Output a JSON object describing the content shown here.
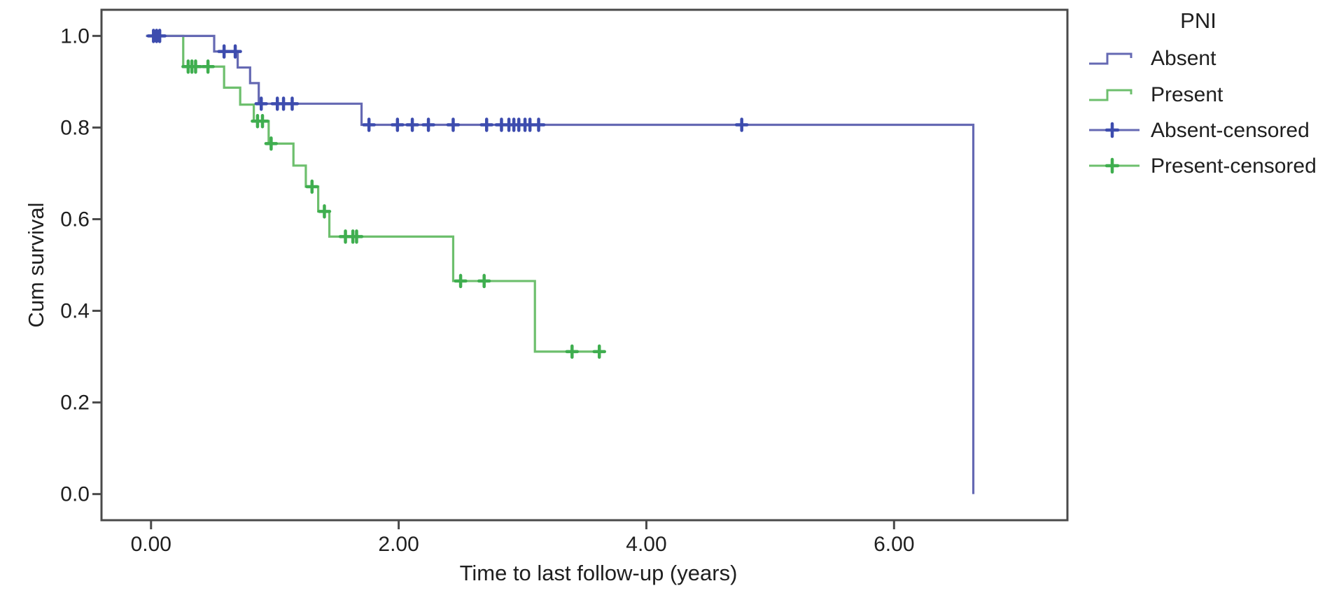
{
  "figure": {
    "background": "#ffffff",
    "axis_color": "#4a4a4a",
    "text_color": "#1f1f1f"
  },
  "chart_data": {
    "type": "line",
    "subtype": "kaplan_meier_step",
    "title": "",
    "xlabel": "Time to last follow-up (years)",
    "ylabel": "Cum survival",
    "xlim": [
      -0.4,
      7.4
    ],
    "ylim": [
      -0.057,
      1.057
    ],
    "grid": false,
    "legend_position": "right",
    "x_ticks": [
      {
        "value": 0,
        "label": "0.00"
      },
      {
        "value": 2,
        "label": "2.00"
      },
      {
        "value": 4,
        "label": "4.00"
      },
      {
        "value": 6,
        "label": "6.00"
      }
    ],
    "y_ticks": [
      {
        "value": 0.0,
        "label": "0.0"
      },
      {
        "value": 0.2,
        "label": "0.2"
      },
      {
        "value": 0.4,
        "label": "0.4"
      },
      {
        "value": 0.6,
        "label": "0.6"
      },
      {
        "value": 0.8,
        "label": "0.8"
      },
      {
        "value": 1.0,
        "label": "1.0"
      }
    ],
    "legend": {
      "title": "PNI",
      "entries": [
        {
          "label": "Absent",
          "type": "line",
          "color": "#6569b3",
          "line_color": "#6569b3"
        },
        {
          "label": "Present",
          "type": "line",
          "color": "#6dbf6d",
          "line_color": "#6dbf6d"
        },
        {
          "label": "Absent-censored",
          "type": "censor",
          "color": "#3d4cae",
          "line_color": "#6569b3"
        },
        {
          "label": "Present-censored",
          "type": "censor",
          "color": "#3fae4f",
          "line_color": "#6dbf6d"
        }
      ]
    },
    "series": [
      {
        "name": "Present",
        "line_color": "#6dbf6d",
        "censor_color": "#3fae4f",
        "steps": [
          [
            -0.04,
            1.0
          ],
          [
            0.26,
            0.933
          ],
          [
            0.59,
            0.887
          ],
          [
            0.72,
            0.85
          ],
          [
            0.83,
            0.814
          ],
          [
            0.95,
            0.765
          ],
          [
            1.15,
            0.717
          ],
          [
            1.25,
            0.671
          ],
          [
            1.35,
            0.617
          ],
          [
            1.44,
            0.562
          ],
          [
            2.44,
            0.465
          ],
          [
            3.1,
            0.311
          ]
        ],
        "end_time": 3.67,
        "censored": [
          [
            0.3,
            0.933
          ],
          [
            0.33,
            0.933
          ],
          [
            0.36,
            0.933
          ],
          [
            0.46,
            0.933
          ],
          [
            0.86,
            0.814
          ],
          [
            0.9,
            0.814
          ],
          [
            0.97,
            0.765
          ],
          [
            1.3,
            0.671
          ],
          [
            1.4,
            0.617
          ],
          [
            1.57,
            0.562
          ],
          [
            1.63,
            0.562
          ],
          [
            1.66,
            0.562
          ],
          [
            2.5,
            0.465
          ],
          [
            2.69,
            0.465
          ],
          [
            3.4,
            0.311
          ],
          [
            3.62,
            0.311
          ]
        ]
      },
      {
        "name": "Absent",
        "line_color": "#6569b3",
        "censor_color": "#3d4cae",
        "steps": [
          [
            -0.04,
            1.0
          ],
          [
            0.51,
            0.966
          ],
          [
            0.7,
            0.931
          ],
          [
            0.8,
            0.897
          ],
          [
            0.87,
            0.852
          ],
          [
            1.7,
            0.806
          ],
          [
            6.64,
            0.0
          ]
        ],
        "end_time": 6.64,
        "censored": [
          [
            0.02,
            1.0
          ],
          [
            0.045,
            1.0
          ],
          [
            0.07,
            1.0
          ],
          [
            0.59,
            0.966
          ],
          [
            0.68,
            0.966
          ],
          [
            0.89,
            0.852
          ],
          [
            1.02,
            0.852
          ],
          [
            1.07,
            0.852
          ],
          [
            1.14,
            0.852
          ],
          [
            1.76,
            0.806
          ],
          [
            1.99,
            0.806
          ],
          [
            2.11,
            0.806
          ],
          [
            2.24,
            0.806
          ],
          [
            2.44,
            0.806
          ],
          [
            2.71,
            0.806
          ],
          [
            2.83,
            0.806
          ],
          [
            2.89,
            0.806
          ],
          [
            2.93,
            0.806
          ],
          [
            2.97,
            0.806
          ],
          [
            3.02,
            0.806
          ],
          [
            3.06,
            0.806
          ],
          [
            3.13,
            0.806
          ],
          [
            4.77,
            0.806
          ]
        ]
      }
    ]
  }
}
